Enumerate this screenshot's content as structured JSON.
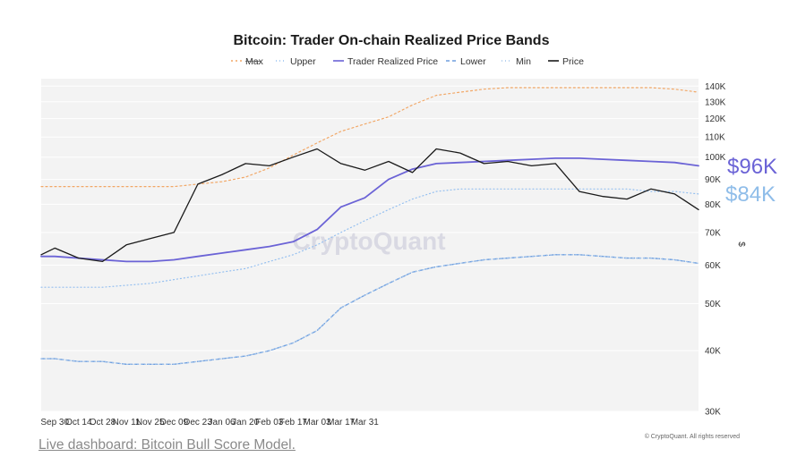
{
  "footer": {
    "link_text": "Live dashboard: Bitcoin Bull Score Model."
  },
  "watermark": "CryptoQuant",
  "copyright": "© CryptoQuant. All rights reserved",
  "callouts": {
    "realized": "$96K",
    "lower_band": "$84K"
  },
  "chart_data": {
    "type": "line",
    "title": "Bitcoin: Trader On-chain Realized Price Bands",
    "ylabel": "$",
    "yscale": "log",
    "ylim": [
      30000,
      145000
    ],
    "grid": true,
    "legend_position": "top-center",
    "x_tick_labels": [
      "Sep 30",
      "Oct 14",
      "Oct 28",
      "Nov 11",
      "Nov 25",
      "Dec 09",
      "Dec 23",
      "Jan 06",
      "Jan 20",
      "Feb 03",
      "Feb 17",
      "Mar 03",
      "Mar 17",
      "Mar 31"
    ],
    "y_tick_labels": [
      {
        "label": "140K",
        "value": 140000
      },
      {
        "label": "130K",
        "value": 130000
      },
      {
        "label": "120K",
        "value": 120000
      },
      {
        "label": "110K",
        "value": 110000
      },
      {
        "label": "100K",
        "value": 100000
      },
      {
        "label": "90K",
        "value": 90000
      },
      {
        "label": "80K",
        "value": 80000
      },
      {
        "label": "70K",
        "value": 70000
      },
      {
        "label": "60K",
        "value": 60000
      },
      {
        "label": "50K",
        "value": 50000
      },
      {
        "label": "40K",
        "value": 40000
      },
      {
        "label": "30K",
        "value": 30000
      }
    ],
    "x": [
      "2024-09-26",
      "2024-09-30",
      "2024-10-07",
      "2024-10-14",
      "2024-10-21",
      "2024-10-28",
      "2024-11-04",
      "2024-11-11",
      "2024-11-18",
      "2024-11-25",
      "2024-12-02",
      "2024-12-09",
      "2024-12-16",
      "2024-12-23",
      "2024-12-30",
      "2025-01-06",
      "2025-01-13",
      "2025-01-20",
      "2025-01-27",
      "2025-02-03",
      "2025-02-10",
      "2025-02-17",
      "2025-02-24",
      "2025-03-03",
      "2025-03-10",
      "2025-03-17",
      "2025-03-24",
      "2025-03-31",
      "2025-04-07"
    ],
    "series": [
      {
        "name": "Max",
        "color": "#f2a766",
        "dash": "2 3",
        "width": 1.2,
        "values": [
          87000,
          87000,
          87000,
          87000,
          87000,
          87000,
          87000,
          88000,
          89000,
          91000,
          95000,
          101000,
          107000,
          113000,
          117000,
          121000,
          128000,
          134000,
          136000,
          138000,
          139000,
          139000,
          139000,
          139000,
          139000,
          139000,
          139000,
          138000,
          136000
        ]
      },
      {
        "name": "Upper",
        "color": "#94bff0",
        "dash": "1 3",
        "width": 1.2,
        "values": [
          54000,
          54000,
          54000,
          54000,
          54500,
          55000,
          56000,
          57000,
          58000,
          59000,
          61000,
          63000,
          66000,
          70000,
          74000,
          78000,
          82000,
          85000,
          86000,
          86000,
          86000,
          86000,
          86000,
          86000,
          86000,
          86000,
          85000,
          85000,
          84000
        ]
      },
      {
        "name": "Trader Realized Price",
        "color": "#6b63d6",
        "dash": "",
        "width": 1.8,
        "values": [
          62500,
          62500,
          62000,
          61500,
          61000,
          61000,
          61500,
          62500,
          63500,
          64500,
          65500,
          67000,
          71000,
          79000,
          82500,
          90000,
          94500,
          97000,
          97500,
          98000,
          98500,
          99000,
          99500,
          99500,
          99000,
          98500,
          98000,
          97500,
          96000
        ]
      },
      {
        "name": "Lower",
        "color": "#6f9ede",
        "dash": "4 3",
        "width": 1.4,
        "values": [
          38500,
          38500,
          38000,
          38000,
          37500,
          37500,
          37500,
          38000,
          38500,
          39000,
          40000,
          41500,
          44000,
          49000,
          52000,
          55000,
          58000,
          59500,
          60500,
          61500,
          62000,
          62500,
          63000,
          63000,
          62500,
          62000,
          62000,
          61500,
          60500
        ]
      },
      {
        "name": "Min",
        "color": "#9fc3ec",
        "dash": "1 3",
        "width": 1.2,
        "values": [
          38500,
          38500,
          38000,
          38000,
          37500,
          37500,
          37500,
          38000,
          38500,
          39000,
          40000,
          41500,
          44000,
          49000,
          52000,
          55000,
          58000,
          59500,
          60500,
          61500,
          62000,
          62500,
          63000,
          63000,
          62500,
          62000,
          62000,
          61500,
          60500
        ]
      },
      {
        "name": "Price",
        "color": "#1a1a1a",
        "dash": "",
        "width": 1.3,
        "values": [
          63000,
          65000,
          62000,
          61000,
          66000,
          68000,
          70000,
          88000,
          92000,
          97000,
          96000,
          100000,
          104000,
          97000,
          94000,
          98000,
          93000,
          104000,
          102000,
          97000,
          98000,
          96000,
          97000,
          85000,
          83000,
          82000,
          86000,
          84000,
          78000
        ]
      }
    ]
  }
}
